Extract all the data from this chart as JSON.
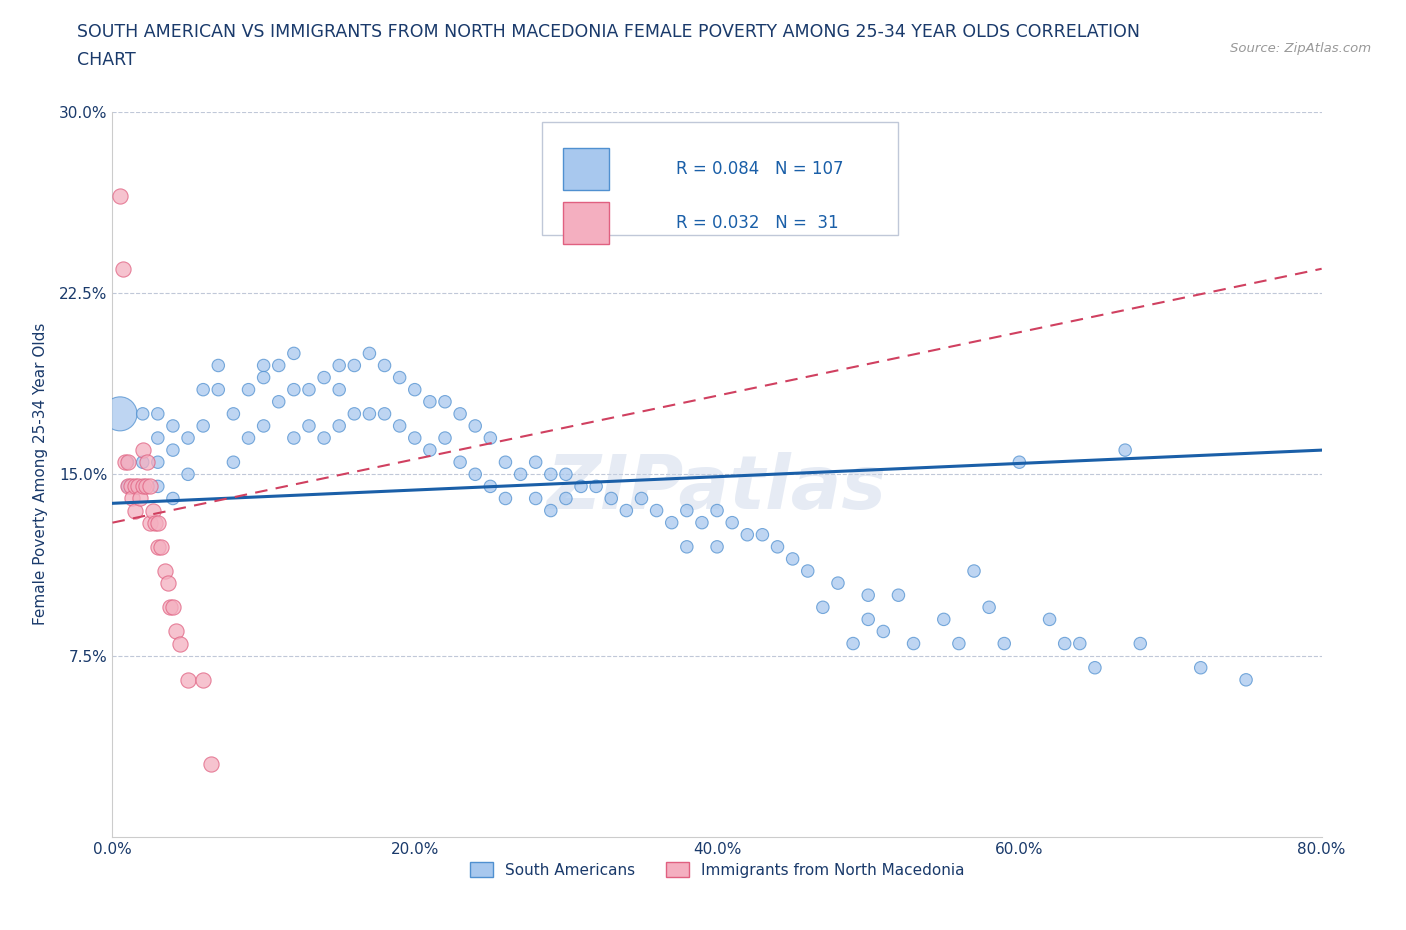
{
  "title_line1": "SOUTH AMERICAN VS IMMIGRANTS FROM NORTH MACEDONIA FEMALE POVERTY AMONG 25-34 YEAR OLDS CORRELATION",
  "title_line2": "CHART",
  "source_text": "Source: ZipAtlas.com",
  "watermark": "ZIPatlas",
  "ylabel": "Female Poverty Among 25-34 Year Olds",
  "xlim": [
    0.0,
    0.8
  ],
  "ylim": [
    0.0,
    0.3
  ],
  "xtick_labels": [
    "0.0%",
    "20.0%",
    "40.0%",
    "60.0%",
    "80.0%"
  ],
  "xtick_vals": [
    0.0,
    0.2,
    0.4,
    0.6,
    0.8
  ],
  "ytick_labels": [
    "7.5%",
    "15.0%",
    "22.5%",
    "30.0%"
  ],
  "ytick_vals": [
    0.075,
    0.15,
    0.225,
    0.3
  ],
  "blue_R": 0.084,
  "blue_N": 107,
  "pink_R": 0.032,
  "pink_N": 31,
  "blue_color": "#a8c8ee",
  "pink_color": "#f4afc0",
  "blue_edge_color": "#5090d0",
  "pink_edge_color": "#e06080",
  "blue_line_color": "#1a5fa8",
  "pink_line_color": "#d04060",
  "legend_label_blue": "South Americans",
  "legend_label_pink": "Immigrants from North Macedonia",
  "blue_line_x0": 0.0,
  "blue_line_y0": 0.138,
  "blue_line_x1": 0.8,
  "blue_line_y1": 0.16,
  "pink_line_x0": 0.0,
  "pink_line_y0": 0.13,
  "pink_line_x1": 0.8,
  "pink_line_y1": 0.235,
  "blue_x": [
    0.005,
    0.01,
    0.01,
    0.02,
    0.02,
    0.02,
    0.03,
    0.03,
    0.03,
    0.03,
    0.04,
    0.04,
    0.04,
    0.05,
    0.05,
    0.06,
    0.06,
    0.07,
    0.07,
    0.08,
    0.08,
    0.09,
    0.09,
    0.1,
    0.1,
    0.1,
    0.11,
    0.11,
    0.12,
    0.12,
    0.12,
    0.13,
    0.13,
    0.14,
    0.14,
    0.15,
    0.15,
    0.15,
    0.16,
    0.16,
    0.17,
    0.17,
    0.18,
    0.18,
    0.19,
    0.19,
    0.2,
    0.2,
    0.21,
    0.21,
    0.22,
    0.22,
    0.23,
    0.23,
    0.24,
    0.24,
    0.25,
    0.25,
    0.26,
    0.26,
    0.27,
    0.28,
    0.28,
    0.29,
    0.29,
    0.3,
    0.3,
    0.31,
    0.32,
    0.33,
    0.34,
    0.35,
    0.36,
    0.37,
    0.38,
    0.38,
    0.39,
    0.4,
    0.4,
    0.41,
    0.42,
    0.43,
    0.44,
    0.45,
    0.46,
    0.47,
    0.48,
    0.49,
    0.5,
    0.5,
    0.51,
    0.52,
    0.53,
    0.55,
    0.56,
    0.57,
    0.58,
    0.59,
    0.6,
    0.62,
    0.63,
    0.64,
    0.65,
    0.67,
    0.68,
    0.72,
    0.75
  ],
  "blue_y": [
    0.175,
    0.155,
    0.145,
    0.175,
    0.155,
    0.145,
    0.175,
    0.165,
    0.155,
    0.145,
    0.17,
    0.16,
    0.14,
    0.165,
    0.15,
    0.185,
    0.17,
    0.195,
    0.185,
    0.175,
    0.155,
    0.185,
    0.165,
    0.195,
    0.19,
    0.17,
    0.195,
    0.18,
    0.2,
    0.185,
    0.165,
    0.185,
    0.17,
    0.19,
    0.165,
    0.195,
    0.185,
    0.17,
    0.195,
    0.175,
    0.2,
    0.175,
    0.195,
    0.175,
    0.19,
    0.17,
    0.185,
    0.165,
    0.18,
    0.16,
    0.18,
    0.165,
    0.175,
    0.155,
    0.17,
    0.15,
    0.165,
    0.145,
    0.155,
    0.14,
    0.15,
    0.155,
    0.14,
    0.15,
    0.135,
    0.15,
    0.14,
    0.145,
    0.145,
    0.14,
    0.135,
    0.14,
    0.135,
    0.13,
    0.135,
    0.12,
    0.13,
    0.135,
    0.12,
    0.13,
    0.125,
    0.125,
    0.12,
    0.115,
    0.11,
    0.095,
    0.105,
    0.08,
    0.1,
    0.09,
    0.085,
    0.1,
    0.08,
    0.09,
    0.08,
    0.11,
    0.095,
    0.08,
    0.155,
    0.09,
    0.08,
    0.08,
    0.07,
    0.16,
    0.08,
    0.07,
    0.065
  ],
  "blue_sizes": [
    600,
    80,
    80,
    80,
    80,
    80,
    80,
    80,
    80,
    80,
    80,
    80,
    80,
    80,
    80,
    80,
    80,
    80,
    80,
    80,
    80,
    80,
    80,
    80,
    80,
    80,
    80,
    80,
    80,
    80,
    80,
    80,
    80,
    80,
    80,
    80,
    80,
    80,
    80,
    80,
    80,
    80,
    80,
    80,
    80,
    80,
    80,
    80,
    80,
    80,
    80,
    80,
    80,
    80,
    80,
    80,
    80,
    80,
    80,
    80,
    80,
    80,
    80,
    80,
    80,
    80,
    80,
    80,
    80,
    80,
    80,
    80,
    80,
    80,
    80,
    80,
    80,
    80,
    80,
    80,
    80,
    80,
    80,
    80,
    80,
    80,
    80,
    80,
    80,
    80,
    80,
    80,
    80,
    80,
    80,
    80,
    80,
    80,
    80,
    80,
    80,
    80,
    80,
    80,
    80,
    80,
    80
  ],
  "pink_x": [
    0.005,
    0.007,
    0.008,
    0.01,
    0.01,
    0.012,
    0.013,
    0.015,
    0.015,
    0.017,
    0.018,
    0.02,
    0.02,
    0.022,
    0.023,
    0.025,
    0.025,
    0.027,
    0.028,
    0.03,
    0.03,
    0.032,
    0.035,
    0.037,
    0.038,
    0.04,
    0.042,
    0.045,
    0.05,
    0.06,
    0.065
  ],
  "pink_y": [
    0.265,
    0.235,
    0.155,
    0.155,
    0.145,
    0.145,
    0.14,
    0.145,
    0.135,
    0.145,
    0.14,
    0.16,
    0.145,
    0.145,
    0.155,
    0.145,
    0.13,
    0.135,
    0.13,
    0.13,
    0.12,
    0.12,
    0.11,
    0.105,
    0.095,
    0.095,
    0.085,
    0.08,
    0.065,
    0.065,
    0.03
  ]
}
